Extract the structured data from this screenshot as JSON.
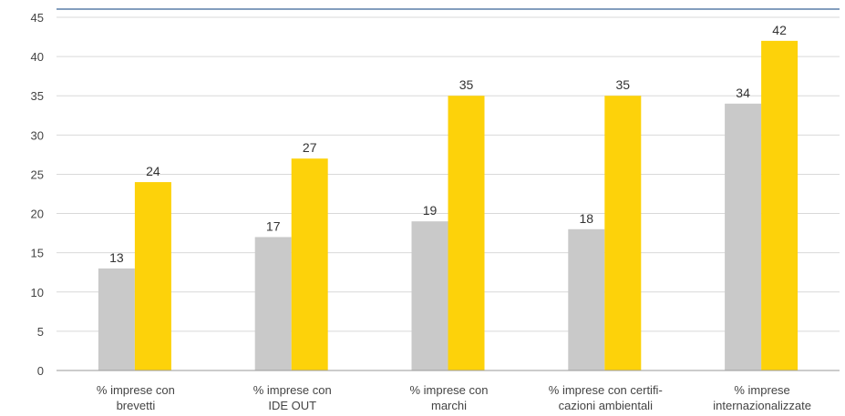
{
  "chart_data": {
    "type": "bar",
    "categories": [
      [
        "% imprese con",
        "brevetti"
      ],
      [
        "% imprese con",
        "IDE OUT"
      ],
      [
        "% imprese con",
        "marchi"
      ],
      [
        "% imprese con certifi-",
        "cazioni ambientali"
      ],
      [
        "% imprese",
        "internazionalizzate"
      ]
    ],
    "series": [
      {
        "values": [
          13,
          17,
          19,
          18,
          34
        ],
        "color": "#c9c9c9"
      },
      {
        "values": [
          24,
          27,
          35,
          35,
          42
        ],
        "color": "#fdd20a"
      }
    ],
    "ylim": [
      0,
      45
    ],
    "yticks": [
      0,
      5,
      10,
      15,
      20,
      25,
      30,
      35,
      40,
      45
    ],
    "grid": true,
    "data_labels": true
  }
}
